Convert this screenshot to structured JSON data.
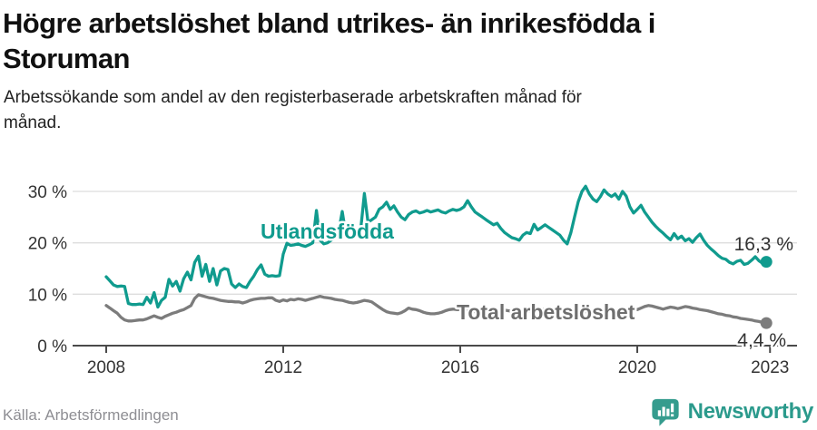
{
  "header": {
    "title": "Högre arbetslöshet bland utrikes- än inrikesfödda i Storuman",
    "subtitle": "Arbetssökande som andel av den registerbaserade arbetskraften månad för månad."
  },
  "footer": {
    "source": "Källa: Arbetsförmedlingen",
    "brand_name": "Newsworthy"
  },
  "icons": {
    "logo": "newsworthy-bar-chart-pin-icon"
  },
  "colors": {
    "foreign_series": "#109b8e",
    "total_series": "#7c7c7c",
    "total_label": "#6e6e6e",
    "brand_teal": "#359c8e",
    "brand_text": "#2b9a8c",
    "axis": "#4a4a4a",
    "grid": "#dedede",
    "tick_text": "#333333"
  },
  "chart_data": {
    "type": "line",
    "frequency": "monthly",
    "start_year": 2008,
    "x_tick_years": [
      2008,
      2012,
      2016,
      2020,
      2023
    ],
    "x_ticks": [
      "2008",
      "2012",
      "2016",
      "2020",
      "2023"
    ],
    "y_tick_values": [
      30,
      20,
      10,
      0
    ],
    "y_ticks": [
      "30 %",
      "20 %",
      "10 %",
      "0 %"
    ],
    "ylim": [
      0,
      33
    ],
    "grid": true,
    "series": [
      {
        "name": "Utlandsfödda",
        "color": "#109b8e",
        "end_label": "16,3 %",
        "end_value": 16.3,
        "values": [
          13.4,
          12.6,
          11.8,
          11.5,
          11.6,
          11.5,
          8.2,
          8.0,
          8.0,
          8.1,
          8.0,
          9.4,
          8.3,
          10.3,
          7.5,
          8.8,
          9.4,
          12.9,
          11.6,
          12.5,
          10.6,
          13.0,
          14.3,
          12.8,
          16.2,
          17.4,
          13.5,
          15.8,
          12.5,
          15.0,
          11.8,
          14.5,
          15.0,
          14.8,
          12.0,
          11.3,
          12.0,
          11.5,
          11.3,
          12.5,
          13.5,
          14.8,
          15.7,
          13.9,
          13.5,
          13.6,
          13.5,
          13.6,
          17.8,
          19.9,
          19.5,
          19.6,
          19.8,
          19.5,
          19.3,
          19.6,
          20.0,
          26.3,
          20.5,
          19.8,
          20.0,
          20.5,
          21.0,
          22.0,
          26.1,
          21.5,
          20.8,
          21.0,
          21.5,
          22.5,
          29.6,
          24.0,
          24.5,
          25.0,
          26.5,
          27.0,
          27.9,
          26.5,
          27.2,
          26.0,
          25.0,
          24.5,
          25.5,
          26.0,
          26.2,
          25.8,
          26.0,
          26.3,
          26.0,
          26.2,
          26.4,
          26.0,
          25.8,
          26.2,
          26.5,
          26.3,
          26.5,
          27.0,
          28.2,
          27.0,
          26.0,
          25.5,
          25.0,
          24.5,
          24.0,
          23.5,
          23.8,
          22.8,
          22.0,
          21.5,
          21.0,
          20.8,
          20.5,
          21.5,
          22.0,
          21.8,
          23.6,
          22.5,
          23.0,
          23.5,
          23.0,
          22.5,
          22.0,
          21.5,
          20.5,
          19.8,
          22.0,
          25.0,
          28.0,
          30.0,
          31.0,
          29.5,
          28.5,
          28.0,
          29.0,
          30.3,
          29.5,
          29.0,
          29.5,
          28.5,
          30.0,
          29.1,
          27.0,
          25.8,
          26.5,
          27.3,
          26.0,
          25.0,
          24.0,
          23.2,
          22.5,
          21.9,
          21.2,
          20.6,
          21.8,
          20.8,
          21.3,
          20.4,
          20.8,
          20.1,
          21.0,
          21.7,
          20.5,
          19.5,
          18.8,
          18.2,
          17.5,
          17.0,
          16.8,
          16.2,
          15.9,
          16.4,
          16.6,
          15.8,
          16.0,
          16.6,
          17.3,
          16.5,
          16.0,
          16.3
        ]
      },
      {
        "name": "Total arbetslöshet",
        "color": "#7c7c7c",
        "end_label": "4,4 %",
        "end_value": 4.4,
        "values": [
          7.8,
          7.3,
          6.8,
          6.3,
          5.5,
          5.0,
          4.8,
          4.8,
          4.9,
          5.0,
          5.0,
          5.2,
          5.5,
          5.8,
          5.5,
          5.3,
          5.7,
          6.0,
          6.3,
          6.5,
          6.8,
          7.0,
          7.4,
          7.8,
          9.2,
          9.9,
          9.7,
          9.5,
          9.3,
          9.2,
          9.0,
          8.8,
          8.7,
          8.6,
          8.6,
          8.5,
          8.5,
          8.3,
          8.5,
          8.8,
          9.0,
          9.1,
          9.2,
          9.2,
          9.3,
          9.3,
          8.8,
          8.6,
          8.9,
          8.7,
          9.0,
          8.9,
          9.1,
          9.0,
          8.8,
          9.0,
          9.2,
          9.4,
          9.6,
          9.4,
          9.3,
          9.2,
          9.0,
          8.9,
          8.8,
          8.6,
          8.4,
          8.3,
          8.4,
          8.6,
          8.8,
          8.7,
          8.5,
          8.0,
          7.5,
          7.0,
          6.6,
          6.4,
          6.3,
          6.2,
          6.4,
          6.8,
          7.3,
          7.1,
          7.0,
          6.8,
          6.5,
          6.3,
          6.2,
          6.2,
          6.3,
          6.5,
          6.8,
          7.0,
          7.1,
          7.0,
          7.0,
          6.9,
          6.8,
          6.7,
          6.6,
          6.5,
          6.6,
          6.7,
          6.8,
          6.9,
          7.0,
          7.0,
          6.9,
          6.8,
          6.7,
          6.6,
          6.5,
          6.5,
          6.6,
          6.7,
          6.8,
          6.9,
          7.0,
          7.1,
          7.0,
          6.9,
          6.8,
          6.7,
          6.6,
          6.5,
          6.4,
          6.3,
          6.4,
          6.5,
          6.6,
          6.7,
          6.6,
          6.5,
          6.4,
          6.3,
          6.4,
          6.5,
          6.6,
          6.7,
          6.8,
          6.9,
          7.0,
          7.2,
          7.0,
          7.3,
          7.6,
          7.8,
          7.7,
          7.5,
          7.3,
          7.1,
          7.3,
          7.5,
          7.4,
          7.2,
          7.4,
          7.6,
          7.5,
          7.3,
          7.2,
          7.0,
          6.9,
          6.8,
          6.6,
          6.4,
          6.2,
          6.1,
          5.9,
          5.8,
          5.6,
          5.5,
          5.3,
          5.2,
          5.1,
          5.0,
          4.8,
          4.7,
          4.5,
          4.4
        ]
      }
    ]
  }
}
